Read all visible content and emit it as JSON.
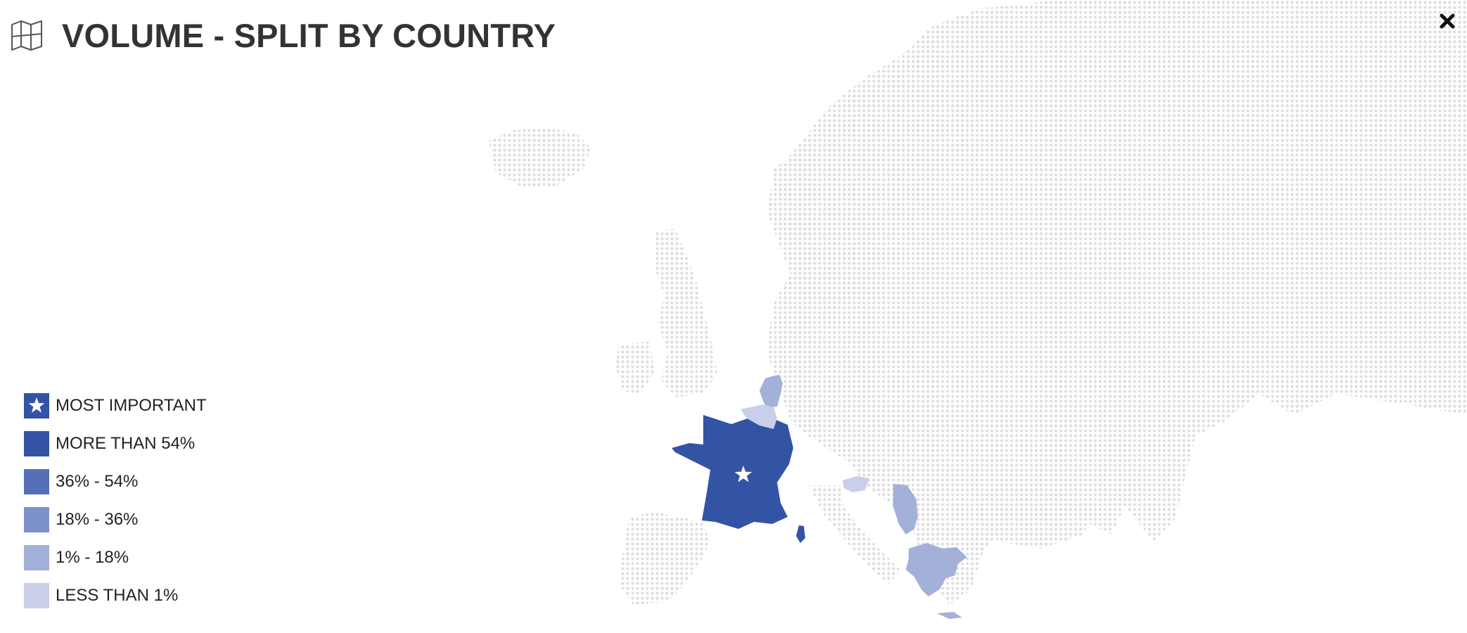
{
  "header": {
    "title": "VOLUME - SPLIT BY COUNTRY",
    "icon": "map-icon"
  },
  "close": {
    "icon": "close-icon"
  },
  "colors": {
    "most_important": "#3354a5",
    "more_than_54": "#3354a5",
    "range_36_54": "#5670b8",
    "range_18_36": "#7d92c9",
    "range_1_18": "#a3b0d8",
    "less_than_1": "#c9cfe8",
    "map_dots": "#dcdcdc",
    "star": "#ffffff"
  },
  "legend": [
    {
      "label": "MOST IMPORTANT",
      "key": "most_important",
      "icon": "star-icon"
    },
    {
      "label": "MORE THAN 54%",
      "key": "more_than_54"
    },
    {
      "label": "36% - 54%",
      "key": "range_36_54"
    },
    {
      "label": "18% - 36%",
      "key": "range_18_36"
    },
    {
      "label": "1% - 18%",
      "key": "range_1_18"
    },
    {
      "label": "LESS THAN 1%",
      "key": "less_than_1"
    }
  ],
  "highlighted_regions": [
    {
      "id": "france",
      "class": "more_than_54",
      "most_important": true
    },
    {
      "id": "corsica",
      "class": "more_than_54"
    },
    {
      "id": "netherlands",
      "class": "range_1_18"
    },
    {
      "id": "belgium",
      "class": "less_than_1"
    },
    {
      "id": "slovenia",
      "class": "less_than_1"
    },
    {
      "id": "serbia",
      "class": "range_1_18"
    },
    {
      "id": "greece",
      "class": "range_1_18"
    }
  ]
}
